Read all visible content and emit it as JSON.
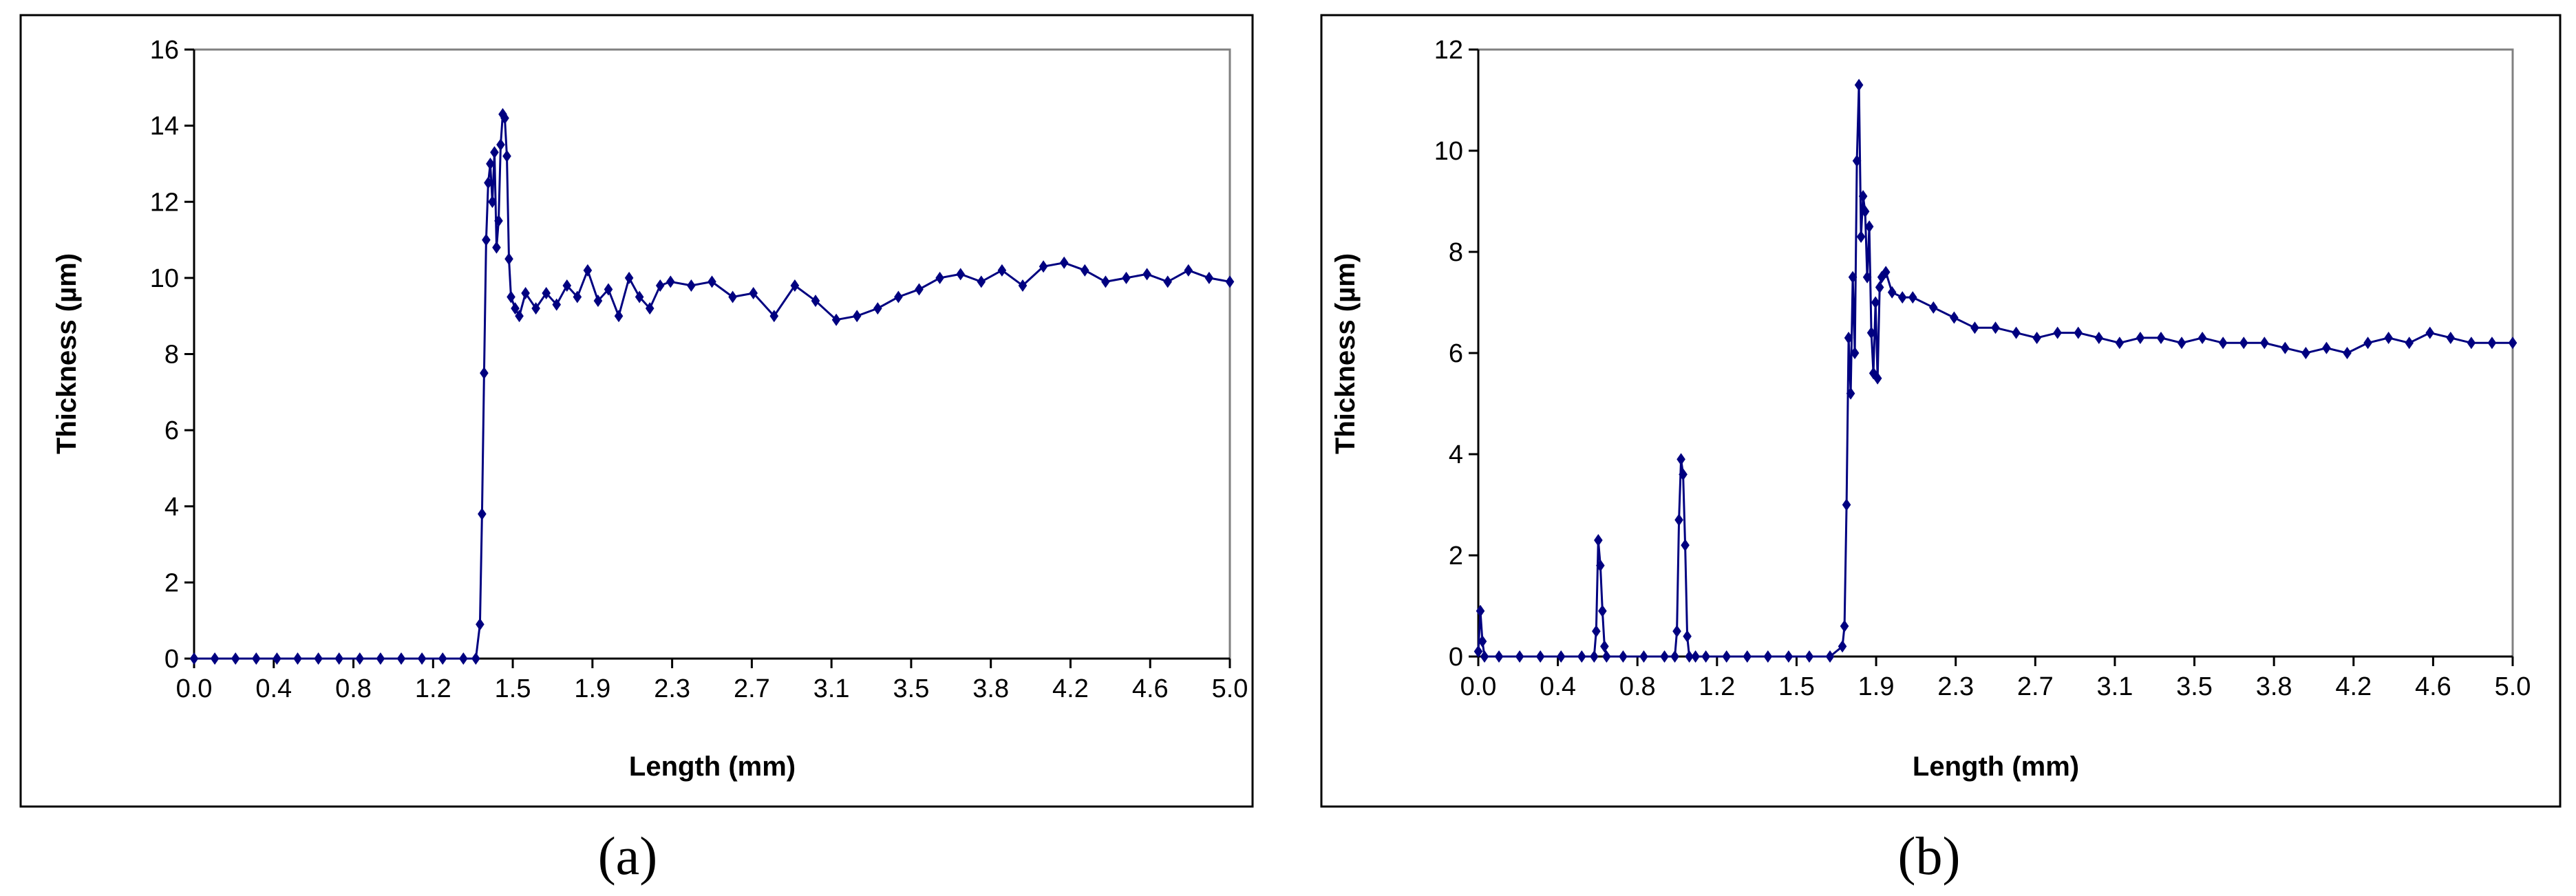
{
  "figure": {
    "panel_a_label": "(a)",
    "panel_b_label": "(b)"
  },
  "chart_data": [
    {
      "type": "line",
      "panel": "a",
      "xlabel": "Length (mm)",
      "ylabel": "Thickness (µm)",
      "ylim": [
        0,
        16
      ],
      "yticks": [
        0,
        2,
        4,
        6,
        8,
        10,
        12,
        14,
        16
      ],
      "xtick_labels": [
        "0.0",
        "0.4",
        "0.8",
        "1.2",
        "1.5",
        "1.9",
        "2.3",
        "2.7",
        "3.1",
        "3.5",
        "3.8",
        "4.2",
        "4.6",
        "5.0"
      ],
      "xlim": [
        0,
        5.0
      ],
      "grid": false,
      "legend": "none",
      "marker": "diamond",
      "color": "#000080",
      "series": [
        {
          "x": [
            0.0,
            0.1,
            0.2,
            0.3,
            0.4,
            0.5,
            0.6,
            0.7,
            0.8,
            0.9,
            1.0,
            1.1,
            1.2,
            1.3,
            1.36,
            1.38,
            1.39,
            1.4,
            1.41,
            1.42,
            1.43,
            1.44,
            1.45,
            1.46,
            1.47,
            1.48,
            1.49,
            1.5,
            1.51,
            1.52,
            1.53,
            1.55,
            1.57,
            1.6,
            1.65,
            1.7,
            1.75,
            1.8,
            1.85,
            1.9,
            1.95,
            2.0,
            2.05,
            2.1,
            2.15,
            2.2,
            2.25,
            2.3,
            2.4,
            2.5,
            2.6,
            2.7,
            2.8,
            2.9,
            3.0,
            3.1,
            3.2,
            3.3,
            3.4,
            3.5,
            3.6,
            3.7,
            3.8,
            3.9,
            4.0,
            4.1,
            4.2,
            4.3,
            4.4,
            4.5,
            4.6,
            4.7,
            4.8,
            4.9,
            5.0
          ],
          "values": [
            0,
            0,
            0,
            0,
            0,
            0,
            0,
            0,
            0,
            0,
            0,
            0,
            0,
            0,
            0,
            0.9,
            3.8,
            7.5,
            11.0,
            12.5,
            13.0,
            12.0,
            13.3,
            10.8,
            11.5,
            13.5,
            14.3,
            14.2,
            13.2,
            10.5,
            9.5,
            9.2,
            9.0,
            9.6,
            9.2,
            9.6,
            9.3,
            9.8,
            9.5,
            10.2,
            9.4,
            9.7,
            9.0,
            10.0,
            9.5,
            9.2,
            9.8,
            9.9,
            9.8,
            9.9,
            9.5,
            9.6,
            9.0,
            9.8,
            9.4,
            8.9,
            9.0,
            9.2,
            9.5,
            9.7,
            10.0,
            10.1,
            9.9,
            10.2,
            9.8,
            10.3,
            10.4,
            10.2,
            9.9,
            10.0,
            10.1,
            9.9,
            10.2,
            10.0,
            9.9
          ]
        }
      ]
    },
    {
      "type": "line",
      "panel": "b",
      "xlabel": "Length (mm)",
      "ylabel": "Thickness (µm)",
      "ylim": [
        0,
        12
      ],
      "yticks": [
        0,
        2,
        4,
        6,
        8,
        10,
        12
      ],
      "xtick_labels": [
        "0.0",
        "0.4",
        "0.8",
        "1.2",
        "1.5",
        "1.9",
        "2.3",
        "2.7",
        "3.1",
        "3.5",
        "3.8",
        "4.2",
        "4.6",
        "5.0"
      ],
      "xlim": [
        0,
        5.0
      ],
      "grid": false,
      "legend": "none",
      "marker": "diamond",
      "color": "#000080",
      "series": [
        {
          "x": [
            0.0,
            0.01,
            0.02,
            0.03,
            0.1,
            0.2,
            0.3,
            0.4,
            0.5,
            0.56,
            0.57,
            0.58,
            0.59,
            0.6,
            0.61,
            0.62,
            0.7,
            0.8,
            0.9,
            0.95,
            0.96,
            0.97,
            0.98,
            0.99,
            1.0,
            1.01,
            1.02,
            1.05,
            1.1,
            1.2,
            1.3,
            1.4,
            1.5,
            1.6,
            1.7,
            1.76,
            1.77,
            1.78,
            1.79,
            1.8,
            1.81,
            1.82,
            1.83,
            1.84,
            1.85,
            1.86,
            1.87,
            1.88,
            1.89,
            1.9,
            1.91,
            1.92,
            1.93,
            1.94,
            1.95,
            1.97,
            2.0,
            2.05,
            2.1,
            2.2,
            2.3,
            2.4,
            2.5,
            2.6,
            2.7,
            2.8,
            2.9,
            3.0,
            3.1,
            3.2,
            3.3,
            3.4,
            3.5,
            3.6,
            3.7,
            3.8,
            3.9,
            4.0,
            4.1,
            4.2,
            4.3,
            4.4,
            4.5,
            4.6,
            4.7,
            4.8,
            4.9,
            5.0
          ],
          "values": [
            0.1,
            0.9,
            0.3,
            0,
            0,
            0,
            0,
            0,
            0,
            0,
            0.5,
            2.3,
            1.8,
            0.9,
            0.2,
            0,
            0,
            0,
            0,
            0,
            0.5,
            2.7,
            3.9,
            3.6,
            2.2,
            0.4,
            0,
            0,
            0,
            0,
            0,
            0,
            0,
            0,
            0,
            0.2,
            0.6,
            3.0,
            6.3,
            5.2,
            7.5,
            6.0,
            9.8,
            11.3,
            8.3,
            9.1,
            8.8,
            7.5,
            8.5,
            6.4,
            5.6,
            7.0,
            5.5,
            7.3,
            7.5,
            7.6,
            7.2,
            7.1,
            7.1,
            6.9,
            6.7,
            6.5,
            6.5,
            6.4,
            6.3,
            6.4,
            6.4,
            6.3,
            6.2,
            6.3,
            6.3,
            6.2,
            6.3,
            6.2,
            6.2,
            6.2,
            6.1,
            6.0,
            6.1,
            6.0,
            6.2,
            6.3,
            6.2,
            6.4,
            6.3,
            6.2,
            6.2,
            6.2
          ]
        }
      ]
    }
  ]
}
